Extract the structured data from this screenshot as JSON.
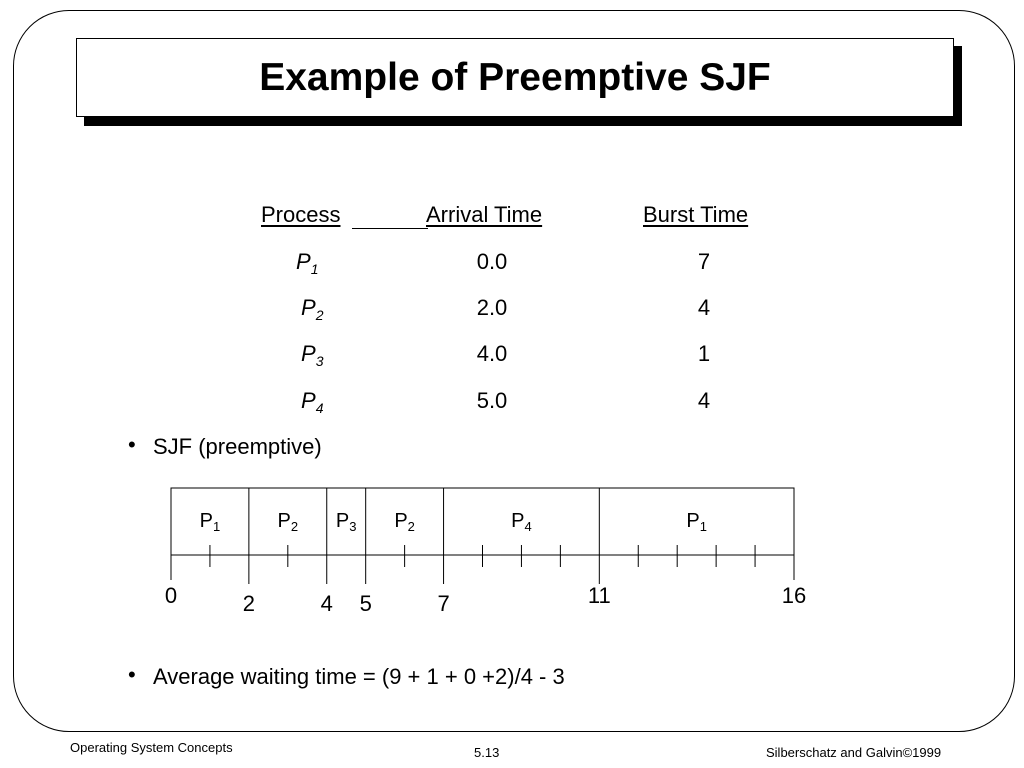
{
  "title": "Example of Preemptive SJF",
  "table": {
    "headers": {
      "process": "Process",
      "arrival": "Arrival Time",
      "burst": "Burst Time"
    },
    "rows": [
      {
        "name": "P",
        "sub": "1",
        "arrival": "0.0",
        "burst": "7"
      },
      {
        "name": "P",
        "sub": "2",
        "arrival": "2.0",
        "burst": "4"
      },
      {
        "name": "P",
        "sub": "3",
        "arrival": "4.0",
        "burst": "1"
      },
      {
        "name": "P",
        "sub": "4",
        "arrival": "5.0",
        "burst": "4"
      }
    ]
  },
  "bullets": {
    "sjf": "SJF (preemptive)",
    "avg": "Average waiting time = (9 + 1 + 0 +2)/4 - 3"
  },
  "gantt": {
    "segments": [
      {
        "name": "P",
        "sub": "1",
        "start": 0,
        "end": 2
      },
      {
        "name": "P",
        "sub": "2",
        "start": 2,
        "end": 4
      },
      {
        "name": "P",
        "sub": "3",
        "start": 4,
        "end": 5
      },
      {
        "name": "P",
        "sub": "2",
        "start": 5,
        "end": 7
      },
      {
        "name": "P",
        "sub": "4",
        "start": 7,
        "end": 11
      },
      {
        "name": "P",
        "sub": "1",
        "start": 11,
        "end": 16
      }
    ],
    "time_labels": [
      {
        "value": 0,
        "label": "0",
        "row": "upper"
      },
      {
        "value": 2,
        "label": "2",
        "row": "lower"
      },
      {
        "value": 4,
        "label": "4",
        "row": "lower"
      },
      {
        "value": 5,
        "label": "5",
        "row": "lower"
      },
      {
        "value": 7,
        "label": "7",
        "row": "lower"
      },
      {
        "value": 11,
        "label": "11",
        "row": "upper"
      },
      {
        "value": 16,
        "label": "16",
        "row": "upper"
      }
    ],
    "ticks": [
      1,
      3,
      6,
      8,
      9,
      10,
      12,
      13,
      14,
      15
    ]
  },
  "footer": {
    "left": "Operating System Concepts",
    "center": "5.13",
    "right": "Silberschatz and Galvin©1999"
  }
}
